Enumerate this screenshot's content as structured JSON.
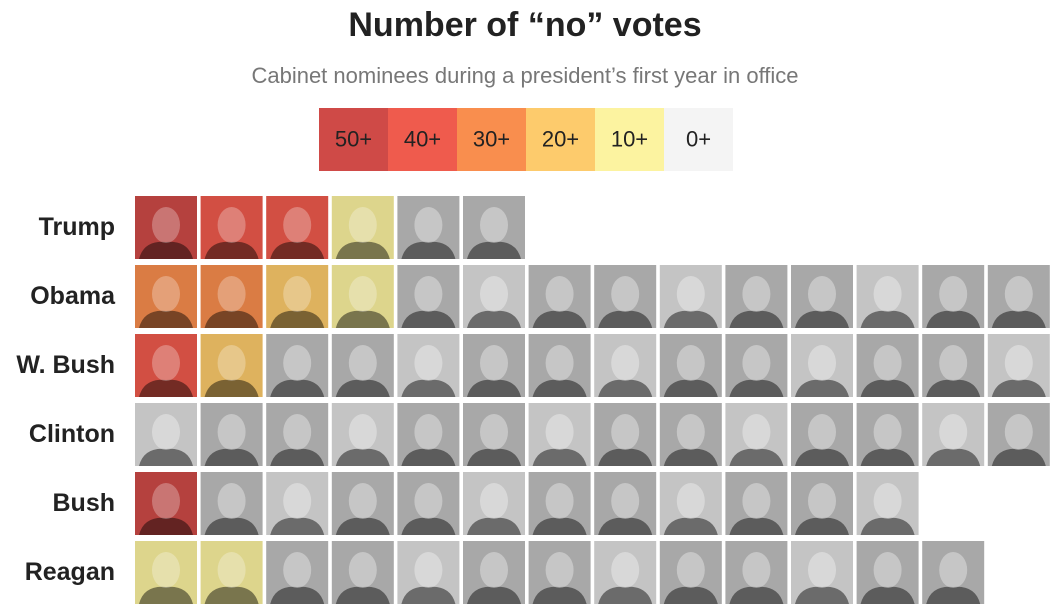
{
  "title": "Number of “no” votes",
  "subtitle": "Cabinet nominees during a president’s first year in office",
  "legend": [
    {
      "label": "50+",
      "color": "#cf4a47"
    },
    {
      "label": "40+",
      "color": "#ef5b4d"
    },
    {
      "label": "30+",
      "color": "#f98e4e"
    },
    {
      "label": "20+",
      "color": "#fdcb6c"
    },
    {
      "label": "10+",
      "color": "#fcf3a0"
    },
    {
      "label": "0+",
      "color": "#f4f4f4"
    }
  ],
  "rows": [
    {
      "label": "Trump",
      "tiles": [
        0,
        1,
        1,
        4,
        5,
        5
      ]
    },
    {
      "label": "Obama",
      "tiles": [
        2,
        2,
        3,
        4,
        5,
        5,
        5,
        5,
        5,
        5,
        5,
        5,
        5,
        5
      ]
    },
    {
      "label": "W. Bush",
      "tiles": [
        1,
        3,
        5,
        5,
        5,
        5,
        5,
        5,
        5,
        5,
        5,
        5,
        5,
        5
      ]
    },
    {
      "label": "Clinton",
      "tiles": [
        5,
        5,
        5,
        5,
        5,
        5,
        5,
        5,
        5,
        5,
        5,
        5,
        5,
        5
      ]
    },
    {
      "label": "Bush",
      "tiles": [
        0,
        5,
        5,
        5,
        5,
        5,
        5,
        5,
        5,
        5,
        5,
        5
      ]
    },
    {
      "label": "Reagan",
      "tiles": [
        4,
        4,
        5,
        5,
        5,
        5,
        5,
        5,
        5,
        5,
        5,
        5,
        5
      ]
    }
  ]
}
